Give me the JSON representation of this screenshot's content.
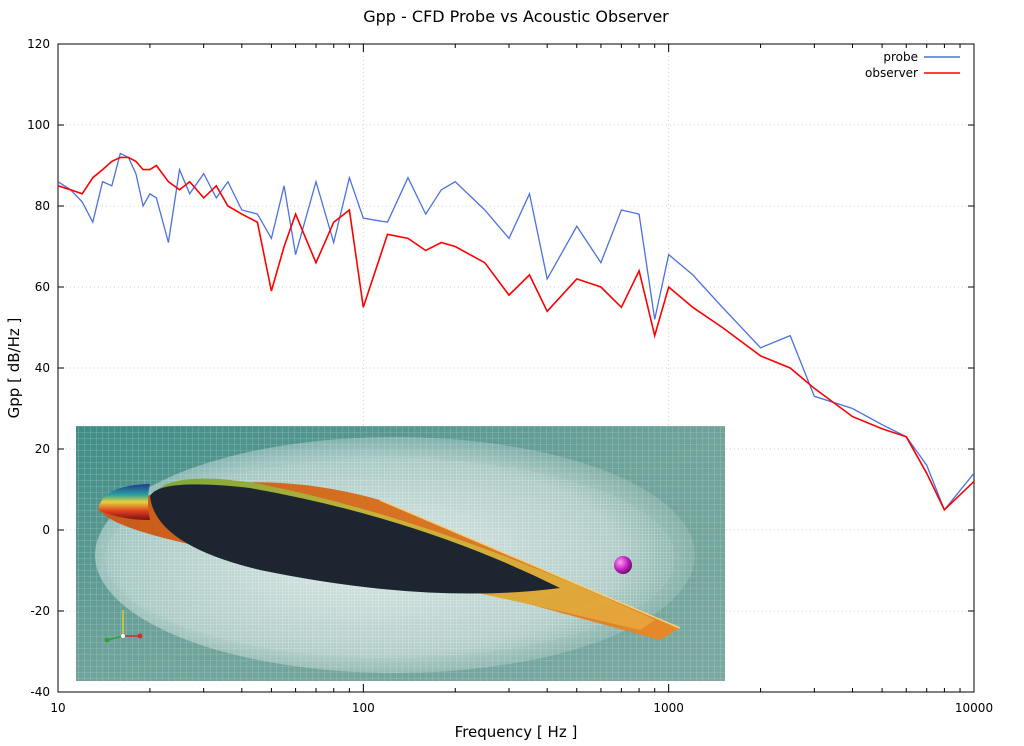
{
  "chart_data": {
    "type": "line",
    "title": "Gpp - CFD Probe vs Acoustic Observer",
    "xlabel": "Frequency [ Hz ]",
    "ylabel": "Gpp [ dB/Hz ]",
    "xscale": "log",
    "xlim": [
      10,
      10000
    ],
    "ylim": [
      -40,
      120
    ],
    "x_ticks": [
      10,
      100,
      1000,
      10000
    ],
    "x_tick_labels": [
      "10",
      "100",
      "1000",
      "10000"
    ],
    "y_ticks": [
      -40,
      -20,
      0,
      20,
      40,
      60,
      80,
      100,
      120
    ],
    "y_tick_labels": [
      "-40",
      "-20",
      "0",
      "20",
      "40",
      "60",
      "80",
      "100",
      "120"
    ],
    "grid": true,
    "legend_position": "top-right",
    "series": [
      {
        "name": "probe",
        "color": "#4a72e0",
        "x": [
          10,
          11,
          12,
          13,
          14,
          15,
          16,
          17,
          18,
          19,
          20,
          21,
          23,
          25,
          27,
          30,
          33,
          36,
          40,
          45,
          50,
          55,
          60,
          70,
          80,
          90,
          100,
          120,
          140,
          160,
          180,
          200,
          250,
          300,
          350,
          400,
          500,
          600,
          700,
          800,
          900,
          1000,
          1200,
          1500,
          2000,
          2500,
          3000,
          4000,
          5000,
          6000,
          7000,
          8000,
          10000
        ],
        "y": [
          86,
          84,
          81,
          76,
          86,
          85,
          93,
          92,
          88,
          80,
          83,
          82,
          71,
          89,
          83,
          88,
          82,
          86,
          79,
          78,
          72,
          85,
          68,
          86,
          71,
          87,
          77,
          76,
          87,
          78,
          84,
          86,
          79,
          72,
          83,
          62,
          75,
          66,
          79,
          78,
          52,
          68,
          63,
          55,
          45,
          48,
          33,
          30,
          26,
          23,
          16,
          5,
          14
        ]
      },
      {
        "name": "observer",
        "color": "#ff0000",
        "x": [
          10,
          11,
          12,
          13,
          14,
          15,
          16,
          17,
          18,
          19,
          20,
          21,
          23,
          25,
          27,
          30,
          33,
          36,
          40,
          45,
          50,
          55,
          60,
          70,
          80,
          90,
          100,
          120,
          140,
          160,
          180,
          200,
          250,
          300,
          350,
          400,
          500,
          600,
          700,
          800,
          900,
          1000,
          1200,
          1500,
          2000,
          2500,
          3000,
          4000,
          5000,
          6000,
          7000,
          8000,
          10000
        ],
        "y": [
          85,
          84,
          83,
          87,
          89,
          91,
          92,
          92,
          91,
          89,
          89,
          90,
          86,
          84,
          86,
          82,
          85,
          80,
          78,
          76,
          59,
          70,
          78,
          66,
          76,
          79,
          55,
          73,
          72,
          69,
          71,
          70,
          66,
          58,
          63,
          54,
          62,
          60,
          55,
          64,
          48,
          60,
          55,
          50,
          43,
          40,
          35,
          28,
          25,
          23,
          14,
          5,
          12
        ]
      }
    ]
  }
}
